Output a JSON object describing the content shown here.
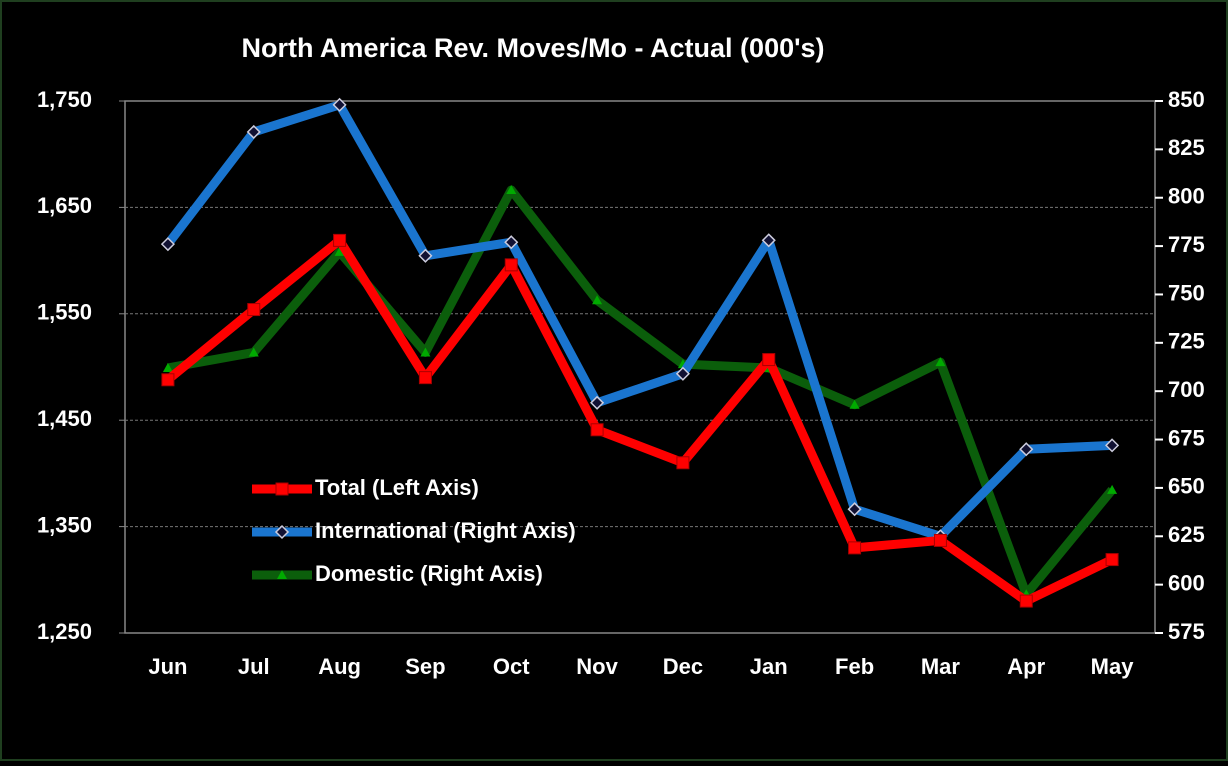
{
  "chart_data": {
    "type": "line",
    "title": "North America Rev. Moves/Mo - Actual (000's)",
    "categories": [
      "Jun",
      "Jul",
      "Aug",
      "Sep",
      "Oct",
      "Nov",
      "Dec",
      "Jan",
      "Feb",
      "Mar",
      "Apr",
      "May"
    ],
    "series": [
      {
        "name": "Total (Left Axis)",
        "color": "#ff0000",
        "values": [
          1488,
          1554,
          1619,
          1490,
          1596,
          1441,
          1410,
          1507,
          1330,
          1337,
          1280,
          1319
        ]
      },
      {
        "name": "International (Right Axis)",
        "color": "#1a75cf",
        "axis": "y2",
        "values": [
          776,
          834,
          848,
          770,
          777,
          694,
          709,
          778,
          639,
          625,
          670,
          672
        ]
      },
      {
        "name": "Domestic (Right Axis)",
        "color": "#0b5e0b",
        "axis": "y2",
        "values": [
          712,
          720,
          772,
          720,
          804,
          747,
          714,
          712,
          693,
          715,
          595,
          649
        ]
      }
    ],
    "ylim": [
      1250,
      1750
    ],
    "yticks": [
      {
        "value": 1250,
        "label": "1,250"
      },
      {
        "value": 1350,
        "label": "1,350"
      },
      {
        "value": 1450,
        "label": "1,450"
      },
      {
        "value": 1550,
        "label": "1,550"
      },
      {
        "value": 1650,
        "label": "1,650"
      },
      {
        "value": 1750,
        "label": "1,750"
      }
    ],
    "y2lim": [
      575,
      850
    ],
    "y2ticks": [
      575,
      600,
      625,
      650,
      675,
      700,
      725,
      750,
      775,
      800,
      825,
      850
    ],
    "grid": true
  }
}
